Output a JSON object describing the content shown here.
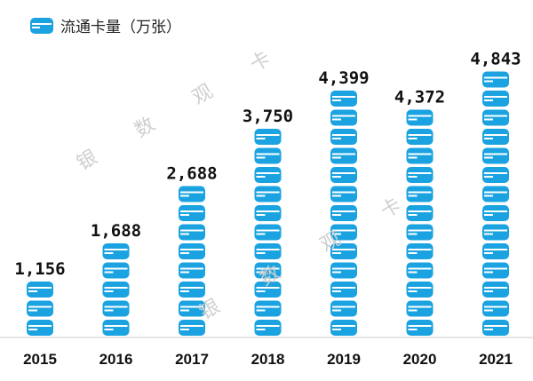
{
  "chart_data": {
    "type": "bar",
    "title": "",
    "legend": {
      "label": "流通卡量（万张）",
      "position": "top-left"
    },
    "categories": [
      "2015",
      "2016",
      "2017",
      "2018",
      "2019",
      "2020",
      "2021"
    ],
    "values": [
      1156,
      1688,
      2688,
      3750,
      4399,
      4372,
      4843
    ],
    "value_labels": [
      "1,156",
      "1,688",
      "2,688",
      "3,750",
      "4,399",
      "4,372",
      "4,843"
    ],
    "ylim": [
      0,
      5000
    ],
    "grid": false,
    "bar_style": "stacked-card-icons",
    "colors": {
      "bar": "#1aa3e0",
      "stripe": "#ffffff",
      "baseline": "#cccccc"
    }
  },
  "watermark": [
    "银",
    "数",
    "观",
    "卡"
  ]
}
